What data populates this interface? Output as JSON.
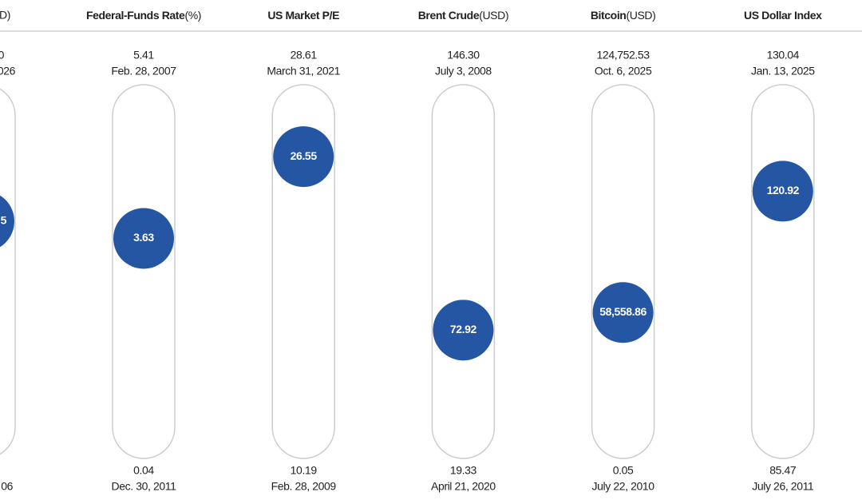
{
  "chart_data": {
    "type": "range-gauge",
    "color": "#2456a4",
    "cut_column": {
      "header": "D)",
      "high": "0",
      "high_date": "026",
      "current": "5",
      "low_date": "06"
    },
    "columns": [
      {
        "name": "Federal-Funds Rate",
        "unit": "(%)",
        "high": 5.41,
        "high_date": "Feb. 28, 2007",
        "current": 3.63,
        "low": 0.04,
        "low_date": "Dec. 30, 2011"
      },
      {
        "name": "US Market P/E",
        "high": 28.61,
        "high_date": "March 31, 2021",
        "current": 26.55,
        "low": 10.19,
        "low_date": "Feb. 28, 2009"
      },
      {
        "name": "Brent Crude",
        "unit": "(USD)",
        "high": 146.3,
        "high_label": "146.30",
        "high_date": "July 3, 2008",
        "current": 72.92,
        "low": 19.33,
        "low_date": "April 21, 2020"
      },
      {
        "name": "Bitcoin",
        "unit": "(USD)",
        "high": 124752.53,
        "high_label": "124,752.53",
        "high_date": "Oct. 6, 2025",
        "current": 58558.86,
        "current_label": "58,558.86",
        "low": 0.05,
        "low_date": "July 22, 2010"
      },
      {
        "name": "US Dollar Index",
        "high": 130.04,
        "high_date": "Jan. 13, 2025",
        "current": 120.92,
        "low": 85.47,
        "low_date": "July 26, 2011"
      }
    ]
  }
}
